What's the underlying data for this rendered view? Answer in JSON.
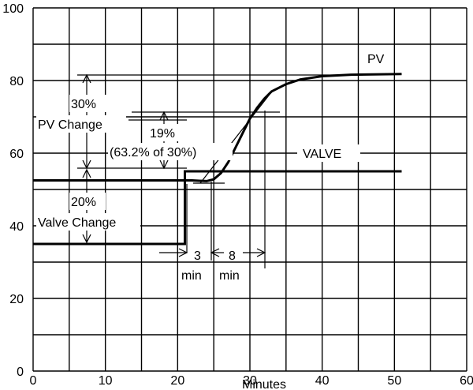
{
  "chart_data": {
    "type": "line",
    "title": "",
    "xlabel": "Minutes",
    "ylabel": "",
    "xlim": [
      0,
      60
    ],
    "ylim": [
      0,
      100
    ],
    "grid": true,
    "x_ticks": [
      0,
      10,
      20,
      30,
      40,
      50,
      60
    ],
    "y_ticks": [
      0,
      20,
      40,
      60,
      80,
      100
    ],
    "series": [
      {
        "name": "PV",
        "points": [
          [
            0,
            52.5
          ],
          [
            22,
            52.5
          ],
          [
            23,
            52.4
          ],
          [
            24,
            52.3
          ],
          [
            25,
            52.8
          ],
          [
            26,
            54.5
          ],
          [
            27,
            57.5
          ],
          [
            28,
            61.5
          ],
          [
            29,
            65.5
          ],
          [
            30,
            69.5
          ],
          [
            31,
            72.5
          ],
          [
            32,
            75
          ],
          [
            33,
            77
          ],
          [
            35,
            79
          ],
          [
            37,
            80.3
          ],
          [
            40,
            81.2
          ],
          [
            44,
            81.6
          ],
          [
            51,
            81.8
          ]
        ]
      },
      {
        "name": "VALVE",
        "points": [
          [
            0,
            35
          ],
          [
            21,
            35
          ],
          [
            21,
            55
          ],
          [
            51,
            55
          ]
        ]
      }
    ],
    "annotations": {
      "pv_label": "PV",
      "valve_label": "VALVE",
      "pv_change_pct": "30%",
      "pv_change_text": "PV Change",
      "pct19": "19%",
      "pct19_sub": "(63.2% of 30%)",
      "valve_change_pct": "20%",
      "valve_change_text": "Valve Change",
      "dead_time_value": "3",
      "dead_time_unit": "min",
      "time_constant_value": "8",
      "time_constant_unit": "min"
    }
  }
}
